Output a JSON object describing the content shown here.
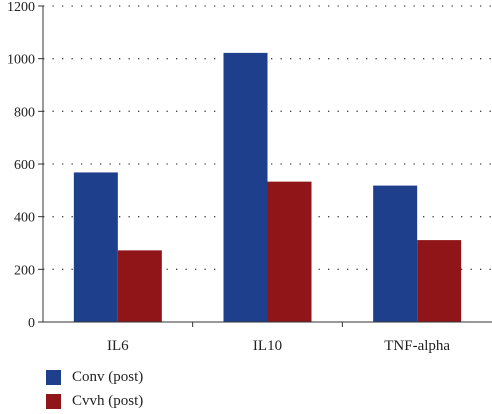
{
  "chart_data": {
    "type": "bar",
    "categories": [
      "IL6",
      "IL10",
      "TNF-alpha"
    ],
    "series": [
      {
        "name": "Conv (post)",
        "values": [
          568,
          1022,
          518
        ],
        "color": "#1e3f8c"
      },
      {
        "name": "Cvvh (post)",
        "values": [
          272,
          533,
          311
        ],
        "color": "#8f1518"
      }
    ],
    "yticks": [
      "0",
      "200",
      "400",
      "600",
      "800",
      "1000",
      "1200"
    ],
    "ylim": [
      0,
      1200
    ],
    "grid": true,
    "legend_position": "bottom-left"
  }
}
